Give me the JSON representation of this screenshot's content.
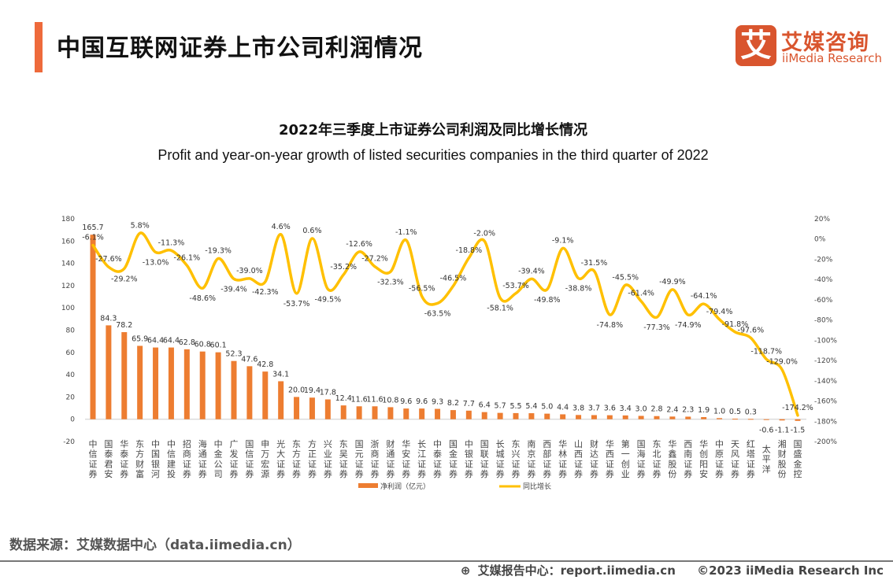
{
  "header": {
    "title": "中国互联网证券上市公司利润情况"
  },
  "logo": {
    "mark": "艾",
    "cn": "艾媒咨询",
    "en": "iiMedia Research"
  },
  "source": "数据来源：艾媒数据中心（data.iimedia.cn）",
  "footer": {
    "report": "艾媒报告中心：report.iimedia.cn",
    "copyright": "©2023  iiMedia Research  Inc"
  },
  "colors": {
    "bar": "#ED7D31",
    "line": "#FFC000",
    "accent": "#EE6A3B"
  },
  "chart_data": {
    "type": "bar+line",
    "title": "2022年三季度上市证券公司利润及同比增长情况",
    "subtitle": "Profit and year-on-year growth of listed securities companies in the third quarter of 2022",
    "categories": [
      "中信证券",
      "国泰君安",
      "华泰证券",
      "东方财富",
      "中国银河",
      "中信建投",
      "招商证券",
      "海通证券",
      "中金公司",
      "广发证券",
      "国信证券",
      "申万宏源",
      "光大证券",
      "东方证券",
      "方正证券",
      "兴业证券",
      "东吴证券",
      "国元证券",
      "浙商证券",
      "财通证券",
      "华安证券",
      "长江证券",
      "中泰证券",
      "国金证券",
      "中银证券",
      "国联证券",
      "长城证券",
      "东兴证券",
      "南京证券",
      "西部证券",
      "华林证券",
      "山西证券",
      "财达证券",
      "华西证券",
      "第一创业",
      "国海证券",
      "东北证券",
      "华鑫股份",
      "西南证券",
      "华创阳安",
      "中原证券",
      "天风证券",
      "红塔证券",
      "太平洋",
      "湘财股份",
      "国盛金控"
    ],
    "series": [
      {
        "name": "净利润（亿元）",
        "type": "bar",
        "axis": "left",
        "values": [
          165.7,
          84.3,
          78.2,
          65.9,
          64.4,
          64.4,
          62.8,
          60.8,
          60.1,
          52.3,
          47.6,
          42.8,
          34.1,
          20.0,
          19.4,
          17.8,
          12.4,
          11.6,
          11.6,
          10.8,
          9.6,
          9.6,
          9.3,
          8.2,
          7.7,
          6.4,
          5.7,
          5.5,
          5.4,
          5.0,
          4.4,
          3.8,
          3.7,
          3.6,
          3.4,
          3.0,
          2.8,
          2.4,
          2.3,
          1.9,
          1.0,
          0.5,
          0.3,
          -0.6,
          -1.1,
          -1.5
        ]
      },
      {
        "name": "同比增长",
        "type": "line",
        "axis": "right",
        "unit": "%",
        "values": [
          -6.1,
          -27.6,
          -29.2,
          5.8,
          -13.0,
          -11.3,
          -26.1,
          -48.6,
          -19.3,
          -39.4,
          -39.0,
          -42.3,
          4.6,
          -53.7,
          0.6,
          -49.5,
          -35.2,
          -12.6,
          -27.2,
          -32.3,
          -1.1,
          -56.5,
          -63.5,
          -46.5,
          -18.8,
          -2.0,
          -58.1,
          -53.7,
          -39.4,
          -49.8,
          -9.1,
          -38.8,
          -31.5,
          -74.8,
          -45.5,
          -61.4,
          -77.3,
          -49.9,
          -74.9,
          -64.1,
          -79.4,
          -91.8,
          -97.6,
          -118.7,
          -129.0,
          -174.2
        ]
      }
    ],
    "y_left": {
      "range": [
        -20,
        180
      ],
      "ticks": [
        180,
        160,
        140,
        120,
        100,
        80,
        60,
        40,
        20,
        0,
        -20
      ]
    },
    "y_right": {
      "range": [
        -200,
        20
      ],
      "ticks": [
        "20%",
        "0%",
        "-20%",
        "-40%",
        "-60%",
        "-80%",
        "-100%",
        "-120%",
        "-140%",
        "-160%",
        "-180%",
        "-200%"
      ]
    },
    "grid": false,
    "legend": "bottom"
  }
}
